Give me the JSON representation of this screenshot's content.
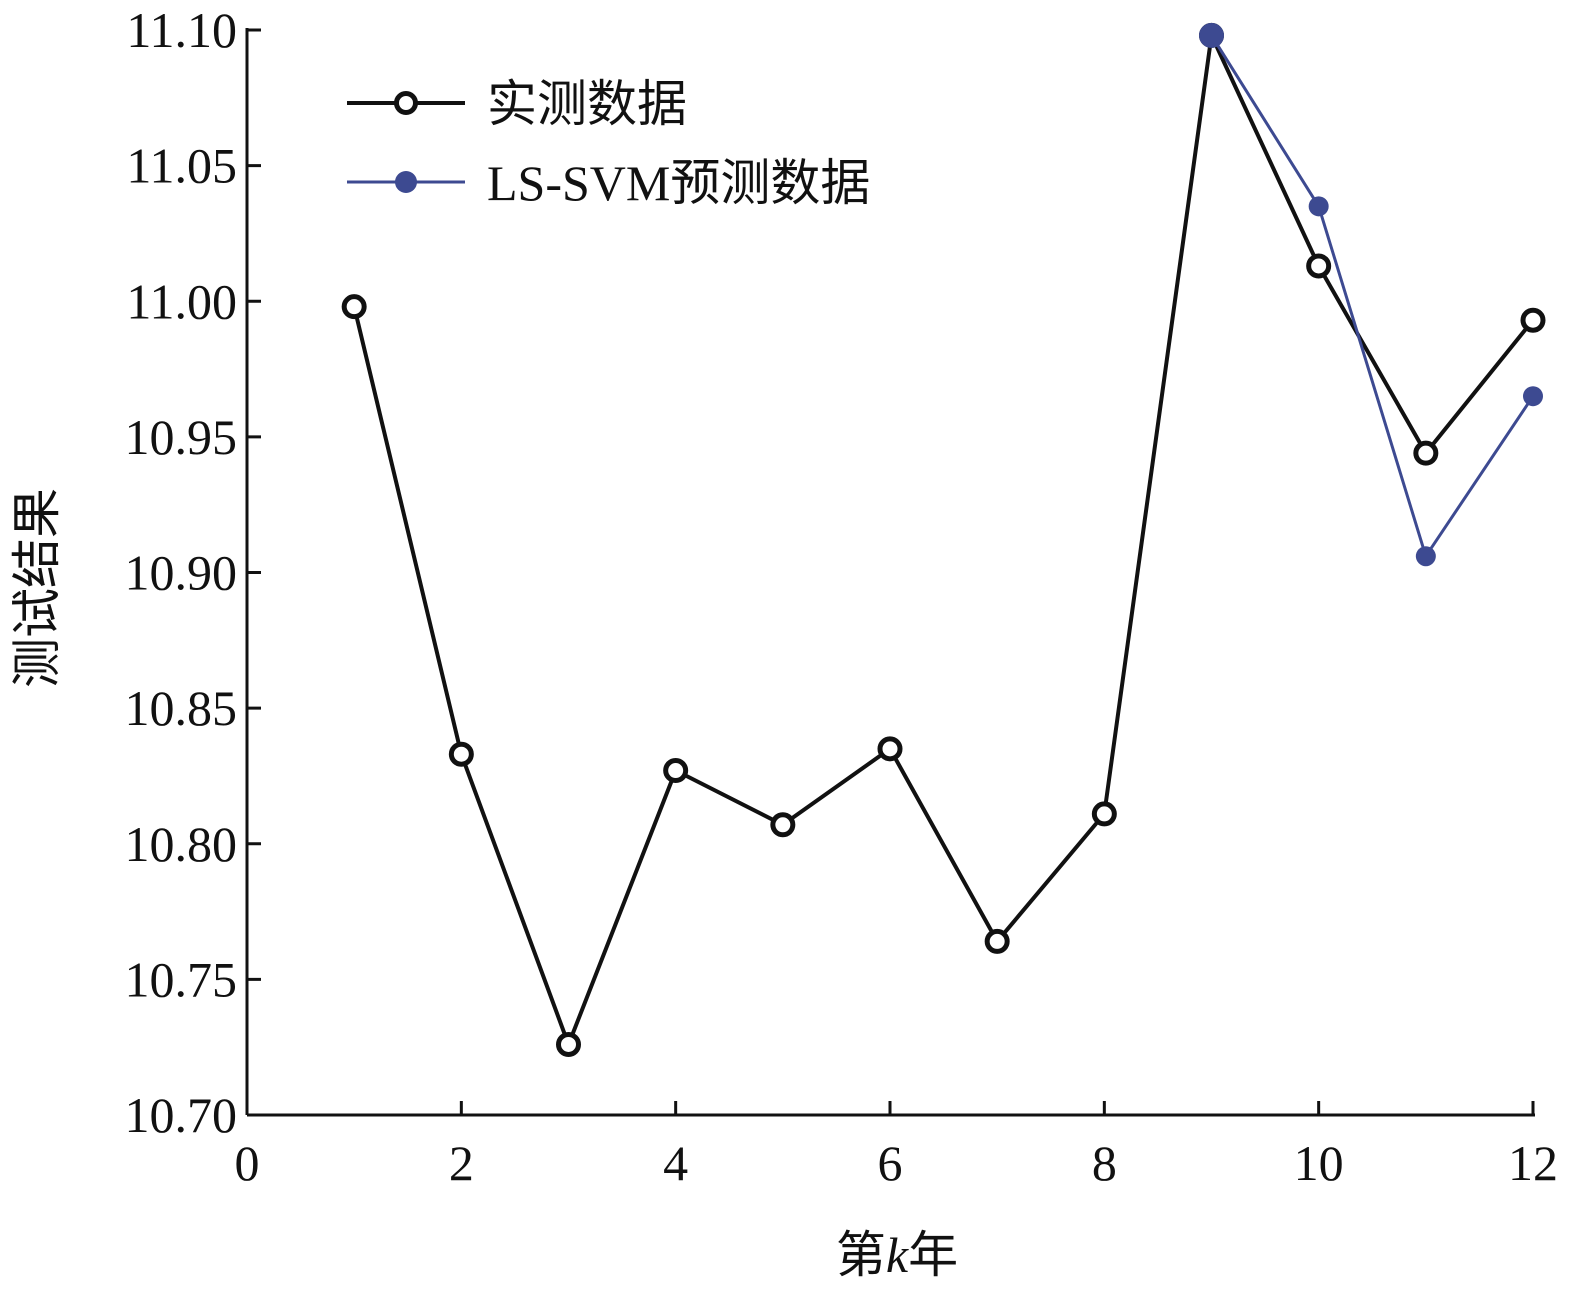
{
  "chart_data": {
    "type": "line",
    "xlabel": "第k年",
    "xlabel_parts": {
      "prefix": "第",
      "italic": "k",
      "suffix": "年"
    },
    "ylabel": "测试结果",
    "xlim": [
      0,
      12
    ],
    "ylim": [
      10.7,
      11.1
    ],
    "xticks": [
      0,
      2,
      4,
      6,
      8,
      10,
      12
    ],
    "yticks": [
      10.7,
      10.75,
      10.8,
      10.85,
      10.9,
      10.95,
      11.0,
      11.05,
      11.1
    ],
    "ytick_labels": [
      "10.70",
      "10.75",
      "10.80",
      "10.85",
      "10.90",
      "10.95",
      "11.00",
      "11.05",
      "11.10"
    ],
    "grid": false,
    "legend_position": "top-left",
    "series": [
      {
        "name": "实测数据",
        "color": "#111111",
        "marker": "open-circle",
        "x": [
          1,
          2,
          3,
          4,
          5,
          6,
          7,
          8,
          9,
          10,
          11,
          12
        ],
        "y": [
          10.998,
          10.833,
          10.726,
          10.827,
          10.807,
          10.835,
          10.764,
          10.811,
          11.098,
          11.013,
          10.944,
          10.993
        ]
      },
      {
        "name": "LS-SVM预测数据",
        "color": "#3d4a91",
        "marker": "filled-circle",
        "x": [
          9,
          10,
          11,
          12
        ],
        "y": [
          11.098,
          11.035,
          10.906,
          10.965
        ]
      }
    ]
  }
}
